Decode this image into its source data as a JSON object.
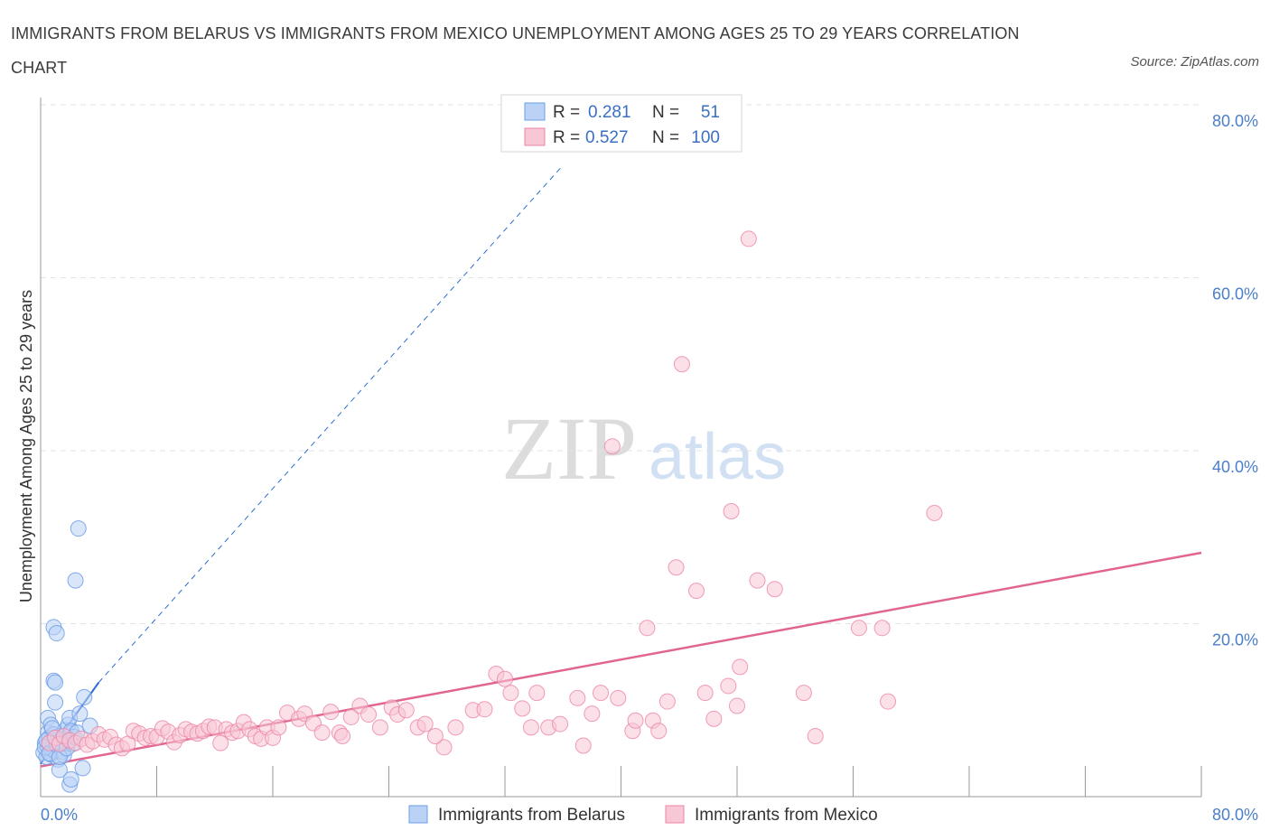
{
  "title": "IMMIGRANTS FROM BELARUS VS IMMIGRANTS FROM MEXICO UNEMPLOYMENT AMONG AGES 25 TO 29 YEARS CORRELATION CHART",
  "source": "Source: ZipAtlas.com",
  "watermark": {
    "zip": "ZIP",
    "atlas": "atlas"
  },
  "colors": {
    "belarus": "#6d9ee6",
    "belarus_fill": "#b9d2f6",
    "mexico": "#ec85a6",
    "mexico_fill": "#f8c7d6",
    "trend_belarus": "#2a6cd1",
    "trend_mexico": "#e2658f",
    "axis_text": "#4a7fc9"
  },
  "legend": {
    "rows": [
      {
        "r_label": "R =",
        "r_value": "0.281",
        "n_label": "N =",
        "n_value": "51"
      },
      {
        "r_label": "R =",
        "r_value": "0.527",
        "n_label": "N =",
        "n_value": "100"
      }
    ]
  },
  "chart_data": {
    "type": "scatter",
    "title": "IMMIGRANTS FROM BELARUS VS IMMIGRANTS FROM MEXICO UNEMPLOYMENT AMONG AGES 25 TO 29 YEARS CORRELATION CHART",
    "xlabel": "",
    "ylabel": "Unemployment Among Ages 25 to 29 years",
    "xlim": [
      0,
      80
    ],
    "ylim": [
      0,
      80
    ],
    "x_tick_labels": [
      "0.0%",
      "80.0%"
    ],
    "y_tick_labels": [
      "20.0%",
      "40.0%",
      "60.0%",
      "80.0%"
    ],
    "y_ticks": [
      20,
      40,
      60,
      80
    ],
    "series": [
      {
        "name": "Immigrants from Belarus",
        "R": 0.281,
        "N": 51,
        "trend": {
          "x": [
            0,
            4
          ],
          "y": [
            3.8,
            13.2
          ],
          "dashed_extension": {
            "x": [
              4,
              36
            ],
            "y": [
              13.2,
              73
            ]
          }
        },
        "points": [
          [
            0.2,
            5.1
          ],
          [
            0.3,
            6.2
          ],
          [
            0.4,
            4.6
          ],
          [
            0.5,
            7.4
          ],
          [
            0.5,
            5.8
          ],
          [
            0.6,
            6.8
          ],
          [
            0.7,
            4.9
          ],
          [
            0.8,
            5.5
          ],
          [
            0.9,
            6.1
          ],
          [
            1.0,
            5.3
          ],
          [
            0.5,
            9.1
          ],
          [
            0.7,
            8.3
          ],
          [
            0.9,
            7.2
          ],
          [
            1.1,
            6.4
          ],
          [
            1.2,
            5.9
          ],
          [
            1.3,
            7.0
          ],
          [
            1.4,
            6.6
          ],
          [
            1.5,
            5.4
          ],
          [
            1.6,
            6.3
          ],
          [
            1.7,
            7.7
          ],
          [
            1.0,
            10.9
          ],
          [
            0.9,
            13.4
          ],
          [
            1.0,
            13.2
          ],
          [
            1.2,
            4.3
          ],
          [
            1.3,
            3.1
          ],
          [
            1.5,
            5.2
          ],
          [
            1.6,
            4.8
          ],
          [
            1.8,
            6.2
          ],
          [
            1.9,
            8.3
          ],
          [
            2.0,
            9.1
          ],
          [
            2.1,
            7.6
          ],
          [
            2.2,
            6.1
          ],
          [
            2.0,
            1.4
          ],
          [
            2.1,
            2.0
          ],
          [
            2.3,
            6.9
          ],
          [
            2.5,
            7.4
          ],
          [
            2.7,
            9.6
          ],
          [
            2.9,
            3.3
          ],
          [
            3.0,
            11.5
          ],
          [
            3.4,
            8.2
          ],
          [
            0.9,
            19.6
          ],
          [
            1.1,
            18.9
          ],
          [
            2.4,
            25.0
          ],
          [
            2.6,
            31.0
          ],
          [
            0.3,
            5.7
          ],
          [
            0.4,
            6.5
          ],
          [
            0.6,
            5.0
          ],
          [
            0.8,
            7.9
          ],
          [
            1.1,
            6.0
          ],
          [
            1.3,
            4.6
          ],
          [
            1.8,
            5.6
          ]
        ]
      },
      {
        "name": "Immigrants from Mexico",
        "R": 0.527,
        "N": 100,
        "trend": {
          "x": [
            0,
            80
          ],
          "y": [
            3.5,
            28.2
          ]
        },
        "points": [
          [
            0.6,
            6.2
          ],
          [
            1.0,
            6.8
          ],
          [
            1.3,
            6.1
          ],
          [
            1.6,
            7.0
          ],
          [
            2.0,
            6.5
          ],
          [
            2.4,
            6.2
          ],
          [
            2.8,
            6.7
          ],
          [
            3.2,
            6.0
          ],
          [
            3.6,
            6.4
          ],
          [
            4.0,
            7.2
          ],
          [
            4.4,
            6.6
          ],
          [
            4.8,
            6.9
          ],
          [
            5.2,
            6.0
          ],
          [
            5.6,
            5.6
          ],
          [
            6.0,
            6.1
          ],
          [
            6.4,
            7.6
          ],
          [
            6.8,
            7.3
          ],
          [
            7.2,
            6.8
          ],
          [
            7.6,
            7.0
          ],
          [
            8.0,
            6.9
          ],
          [
            8.4,
            7.9
          ],
          [
            8.8,
            7.5
          ],
          [
            9.2,
            6.3
          ],
          [
            9.6,
            7.1
          ],
          [
            10.0,
            7.8
          ],
          [
            10.4,
            7.5
          ],
          [
            10.8,
            7.3
          ],
          [
            11.2,
            7.6
          ],
          [
            11.6,
            8.1
          ],
          [
            12.0,
            8.0
          ],
          [
            12.4,
            6.2
          ],
          [
            12.8,
            7.8
          ],
          [
            13.2,
            7.4
          ],
          [
            13.6,
            7.6
          ],
          [
            14.0,
            8.6
          ],
          [
            14.4,
            7.8
          ],
          [
            14.8,
            7.0
          ],
          [
            15.2,
            6.7
          ],
          [
            15.6,
            8.0
          ],
          [
            16.0,
            6.8
          ],
          [
            16.4,
            8.0
          ],
          [
            17.0,
            9.7
          ],
          [
            17.8,
            9.0
          ],
          [
            18.2,
            9.6
          ],
          [
            18.8,
            8.5
          ],
          [
            19.4,
            7.4
          ],
          [
            20.0,
            9.8
          ],
          [
            20.6,
            7.4
          ],
          [
            20.8,
            7.0
          ],
          [
            22.0,
            10.5
          ],
          [
            21.4,
            9.2
          ],
          [
            22.6,
            9.5
          ],
          [
            23.4,
            8.0
          ],
          [
            24.2,
            10.3
          ],
          [
            24.6,
            9.5
          ],
          [
            25.2,
            10.0
          ],
          [
            26.0,
            8.0
          ],
          [
            26.5,
            8.4
          ],
          [
            27.8,
            5.7
          ],
          [
            27.2,
            7.0
          ],
          [
            28.6,
            8.0
          ],
          [
            29.8,
            10.0
          ],
          [
            30.6,
            10.1
          ],
          [
            31.4,
            14.2
          ],
          [
            32.0,
            13.6
          ],
          [
            32.4,
            12.0
          ],
          [
            33.2,
            10.2
          ],
          [
            33.8,
            8.0
          ],
          [
            34.2,
            12.0
          ],
          [
            35.0,
            8.0
          ],
          [
            35.8,
            8.4
          ],
          [
            37.0,
            11.4
          ],
          [
            37.4,
            5.9
          ],
          [
            38.0,
            9.6
          ],
          [
            38.6,
            12.0
          ],
          [
            39.4,
            40.5
          ],
          [
            39.8,
            11.4
          ],
          [
            40.8,
            7.6
          ],
          [
            41.0,
            8.8
          ],
          [
            42.2,
            8.8
          ],
          [
            42.6,
            7.6
          ],
          [
            43.2,
            11.0
          ],
          [
            41.8,
            19.5
          ],
          [
            43.8,
            26.5
          ],
          [
            44.2,
            50.0
          ],
          [
            45.2,
            23.8
          ],
          [
            45.8,
            12.0
          ],
          [
            46.4,
            9.0
          ],
          [
            47.4,
            12.8
          ],
          [
            47.6,
            33.0
          ],
          [
            48.0,
            10.5
          ],
          [
            48.2,
            15.0
          ],
          [
            48.8,
            64.5
          ],
          [
            49.4,
            25.0
          ],
          [
            50.6,
            24.0
          ],
          [
            52.6,
            12.0
          ],
          [
            53.4,
            7.0
          ],
          [
            56.4,
            19.5
          ],
          [
            58.0,
            19.5
          ],
          [
            58.4,
            11.0
          ],
          [
            61.6,
            32.8
          ]
        ]
      }
    ],
    "legend_position": "top-center",
    "bottom_legend": [
      "Immigrants from Belarus",
      "Immigrants from Mexico"
    ]
  }
}
